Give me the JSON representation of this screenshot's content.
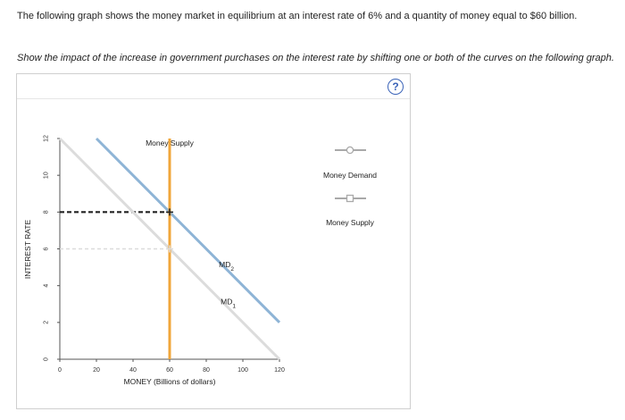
{
  "text": {
    "intro": "The following graph shows the money market in equilibrium at an interest rate of 6% and a quantity of money equal to $60 billion.",
    "instruction": "Show the impact of the increase in government purchases on the interest rate by shifting one or both of the curves on the following graph.",
    "help": "?"
  },
  "legend": {
    "money_demand": "Money Demand",
    "money_supply": "Money Supply"
  },
  "colors": {
    "demand_shifted": "#8eb4d6",
    "demand_original": "#dcdcdc",
    "supply": "#f0a63a",
    "guide_new": "#222222",
    "guide_old": "#dcdcdc",
    "axis": "#555555"
  },
  "chart_data": {
    "type": "line",
    "xlabel": "MONEY (Billions of dollars)",
    "ylabel": "INTEREST RATE",
    "xlim": [
      0,
      120
    ],
    "ylim": [
      0,
      12
    ],
    "xticks": [
      0,
      20,
      40,
      60,
      80,
      100,
      120
    ],
    "yticks": [
      0,
      2,
      4,
      6,
      8,
      10,
      12
    ],
    "series": [
      {
        "name": "MD",
        "subscript": "1",
        "points": [
          [
            0,
            12
          ],
          [
            120,
            0
          ]
        ],
        "color": "#dcdcdc",
        "label_at": [
          92,
          3
        ]
      },
      {
        "name": "MD",
        "subscript": "2",
        "points": [
          [
            20,
            12
          ],
          [
            120,
            2
          ]
        ],
        "color": "#8eb4d6",
        "label_at": [
          91,
          5
        ]
      },
      {
        "name": "Money Supply",
        "points": [
          [
            60,
            0
          ],
          [
            60,
            12
          ]
        ],
        "color": "#f0a63a",
        "label_at": [
          60,
          11.6
        ]
      }
    ],
    "equilibria": [
      {
        "x": 60,
        "y": 6,
        "style": "old"
      },
      {
        "x": 60,
        "y": 8,
        "style": "new"
      }
    ]
  }
}
